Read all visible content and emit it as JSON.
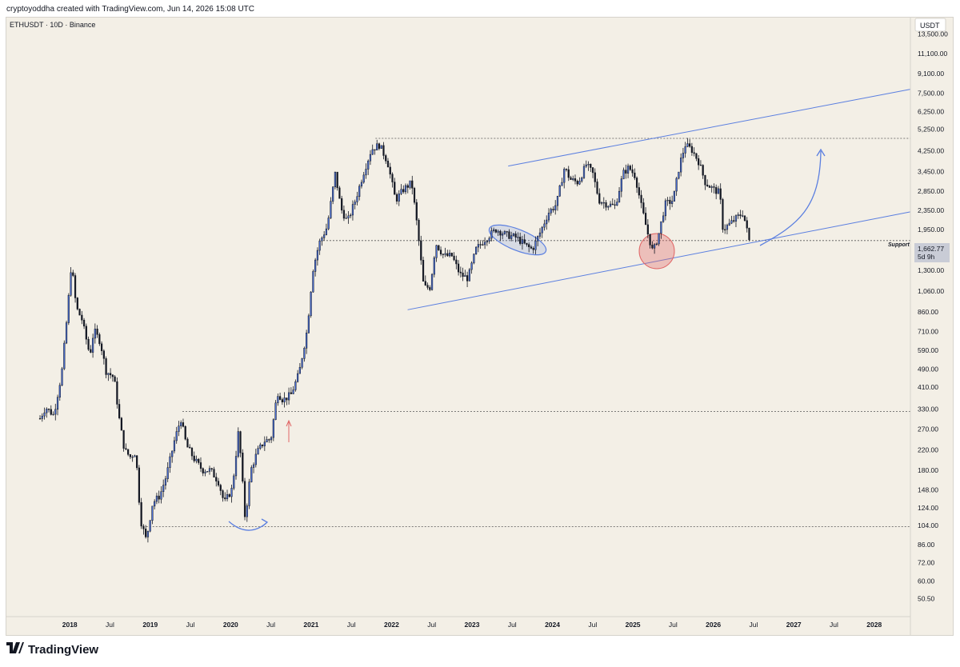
{
  "header": {
    "text": "cryptoyoddha created with TradingView.com, Jun 14, 2026 15:08 UTC"
  },
  "symbol": {
    "text": "ETHUSDT · 10D · Binance"
  },
  "currency": "USDT",
  "footer": {
    "brand": "TradingView"
  },
  "colors": {
    "background": "#f3efe6",
    "up": "#4a6fd6",
    "down": "#131722",
    "trendline": "#5b7fe0",
    "highlight": "#e06666"
  },
  "chart_data": {
    "type": "candlestick",
    "scale": "log",
    "ylim": [
      45,
      15000
    ],
    "xlim": [
      2017.6,
      2028.45
    ],
    "x_ticks": [
      {
        "t": 2018.0,
        "label": "2018"
      },
      {
        "t": 2018.5,
        "label": "Jul"
      },
      {
        "t": 2019.0,
        "label": "2019"
      },
      {
        "t": 2019.5,
        "label": "Jul"
      },
      {
        "t": 2020.0,
        "label": "2020"
      },
      {
        "t": 2020.5,
        "label": "Jul"
      },
      {
        "t": 2021.0,
        "label": "2021"
      },
      {
        "t": 2021.5,
        "label": "Jul"
      },
      {
        "t": 2022.0,
        "label": "2022"
      },
      {
        "t": 2022.5,
        "label": "Jul"
      },
      {
        "t": 2023.0,
        "label": "2023"
      },
      {
        "t": 2023.5,
        "label": "Jul"
      },
      {
        "t": 2024.0,
        "label": "2024"
      },
      {
        "t": 2024.5,
        "label": "Jul"
      },
      {
        "t": 2025.0,
        "label": "2025"
      },
      {
        "t": 2025.5,
        "label": "Jul"
      },
      {
        "t": 2026.0,
        "label": "2026"
      },
      {
        "t": 2026.5,
        "label": "Jul"
      },
      {
        "t": 2027.0,
        "label": "2027"
      },
      {
        "t": 2027.5,
        "label": "Jul"
      },
      {
        "t": 2028.0,
        "label": "2028"
      }
    ],
    "y_ticks": [
      {
        "v": 13500,
        "label": "13,500.00"
      },
      {
        "v": 11100,
        "label": "11,100.00"
      },
      {
        "v": 9100,
        "label": "9,100.00"
      },
      {
        "v": 7500,
        "label": "7,500.00"
      },
      {
        "v": 6250,
        "label": "6,250.00"
      },
      {
        "v": 5250,
        "label": "5,250.00"
      },
      {
        "v": 4250,
        "label": "4,250.00"
      },
      {
        "v": 3450,
        "label": "3,450.00"
      },
      {
        "v": 2850,
        "label": "2,850.00"
      },
      {
        "v": 2350,
        "label": "2,350.00"
      },
      {
        "v": 1950,
        "label": "1,950.00"
      },
      {
        "v": 1300,
        "label": "1,300.00"
      },
      {
        "v": 1060,
        "label": "1,060.00"
      },
      {
        "v": 860,
        "label": "860.00"
      },
      {
        "v": 710,
        "label": "710.00"
      },
      {
        "v": 590,
        "label": "590.00"
      },
      {
        "v": 490,
        "label": "490.00"
      },
      {
        "v": 410,
        "label": "410.00"
      },
      {
        "v": 330,
        "label": "330.00"
      },
      {
        "v": 270,
        "label": "270.00"
      },
      {
        "v": 220,
        "label": "220.00"
      },
      {
        "v": 180,
        "label": "180.00"
      },
      {
        "v": 148,
        "label": "148.00"
      },
      {
        "v": 124,
        "label": "124.00"
      },
      {
        "v": 104,
        "label": "104.00"
      },
      {
        "v": 86,
        "label": "86.00"
      },
      {
        "v": 72,
        "label": "72.00"
      },
      {
        "v": 60,
        "label": "60.00"
      },
      {
        "v": 50.5,
        "label": "50.50"
      }
    ],
    "price_label": {
      "value": "1,662.77",
      "countdown": "5d 9h",
      "price": 1662.77
    },
    "support_label": "Support",
    "horizontal_levels": [
      4800,
      1745,
      322,
      103
    ],
    "waypoints": [
      [
        2017.63,
        300
      ],
      [
        2017.7,
        335
      ],
      [
        2017.8,
        310
      ],
      [
        2017.9,
        470
      ],
      [
        2017.97,
        850
      ],
      [
        2018.02,
        1400
      ],
      [
        2018.08,
        900
      ],
      [
        2018.15,
        800
      ],
      [
        2018.25,
        560
      ],
      [
        2018.3,
        720
      ],
      [
        2018.38,
        640
      ],
      [
        2018.45,
        480
      ],
      [
        2018.55,
        450
      ],
      [
        2018.62,
        290
      ],
      [
        2018.68,
        220
      ],
      [
        2018.75,
        205
      ],
      [
        2018.82,
        215
      ],
      [
        2018.88,
        110
      ],
      [
        2018.95,
        90
      ],
      [
        2019.03,
        130
      ],
      [
        2019.12,
        140
      ],
      [
        2019.2,
        170
      ],
      [
        2019.3,
        240
      ],
      [
        2019.38,
        300
      ],
      [
        2019.45,
        230
      ],
      [
        2019.55,
        200
      ],
      [
        2019.65,
        180
      ],
      [
        2019.75,
        180
      ],
      [
        2019.85,
        160
      ],
      [
        2019.92,
        130
      ],
      [
        2020.02,
        150
      ],
      [
        2020.1,
        270
      ],
      [
        2020.18,
        110
      ],
      [
        2020.25,
        180
      ],
      [
        2020.33,
        215
      ],
      [
        2020.42,
        240
      ],
      [
        2020.5,
        245
      ],
      [
        2020.58,
        390
      ],
      [
        2020.65,
        360
      ],
      [
        2020.75,
        380
      ],
      [
        2020.85,
        470
      ],
      [
        2020.95,
        720
      ],
      [
        2021.02,
        1300
      ],
      [
        2021.1,
        1700
      ],
      [
        2021.2,
        2000
      ],
      [
        2021.3,
        3400
      ],
      [
        2021.37,
        2400
      ],
      [
        2021.45,
        2100
      ],
      [
        2021.55,
        2600
      ],
      [
        2021.65,
        3400
      ],
      [
        2021.75,
        4300
      ],
      [
        2021.85,
        4500
      ],
      [
        2021.95,
        3800
      ],
      [
        2022.05,
        2600
      ],
      [
        2022.15,
        2900
      ],
      [
        2022.25,
        3100
      ],
      [
        2022.32,
        2000
      ],
      [
        2022.4,
        1100
      ],
      [
        2022.48,
        1100
      ],
      [
        2022.55,
        1700
      ],
      [
        2022.65,
        1500
      ],
      [
        2022.75,
        1500
      ],
      [
        2022.85,
        1250
      ],
      [
        2022.95,
        1200
      ],
      [
        2023.05,
        1600
      ],
      [
        2023.15,
        1750
      ],
      [
        2023.3,
        1950
      ],
      [
        2023.42,
        1850
      ],
      [
        2023.55,
        1800
      ],
      [
        2023.68,
        1650
      ],
      [
        2023.75,
        1600
      ],
      [
        2023.85,
        1900
      ],
      [
        2023.95,
        2300
      ],
      [
        2024.05,
        2500
      ],
      [
        2024.15,
        3600
      ],
      [
        2024.22,
        3200
      ],
      [
        2024.32,
        3100
      ],
      [
        2024.42,
        3700
      ],
      [
        2024.5,
        3400
      ],
      [
        2024.58,
        2600
      ],
      [
        2024.68,
        2500
      ],
      [
        2024.78,
        2450
      ],
      [
        2024.88,
        3400
      ],
      [
        2024.95,
        3600
      ],
      [
        2025.03,
        3300
      ],
      [
        2025.1,
        2500
      ],
      [
        2025.18,
        1900
      ],
      [
        2025.25,
        1550
      ],
      [
        2025.32,
        1850
      ],
      [
        2025.4,
        2500
      ],
      [
        2025.5,
        2600
      ],
      [
        2025.58,
        3700
      ],
      [
        2025.65,
        4500
      ],
      [
        2025.73,
        4300
      ],
      [
        2025.82,
        3800
      ],
      [
        2025.9,
        3100
      ],
      [
        2026.0,
        2900
      ],
      [
        2026.08,
        2800
      ],
      [
        2026.12,
        1950
      ],
      [
        2026.2,
        2050
      ],
      [
        2026.3,
        2200
      ],
      [
        2026.37,
        2300
      ],
      [
        2026.42,
        1920
      ],
      [
        2026.46,
        1663
      ]
    ],
    "support_trendline": {
      "start": {
        "t": 2022.2,
        "v": 880
      },
      "end": {
        "t": 2028.45,
        "v": 2320
      }
    },
    "resistance_trendline": {
      "start": {
        "t": 2023.45,
        "v": 3650
      },
      "end": {
        "t": 2028.45,
        "v": 7800
      }
    }
  }
}
